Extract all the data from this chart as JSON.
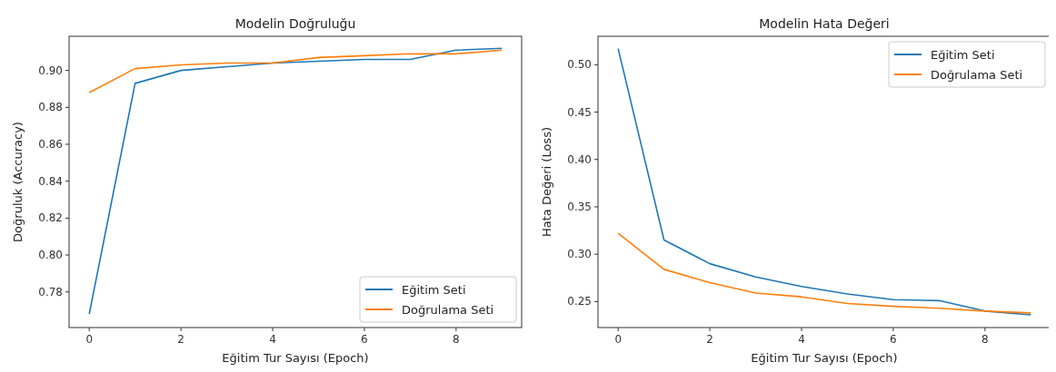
{
  "chart_data": [
    {
      "type": "line",
      "title": "Modelin Doğruluğu",
      "xlabel": "Eğitim Tur Sayısı (Epoch)",
      "ylabel": "Doğruluk (Accuracy)",
      "x": [
        0,
        1,
        2,
        3,
        4,
        5,
        6,
        7,
        8,
        9
      ],
      "xlim": [
        -0.44,
        9.43
      ],
      "xticks": [
        0,
        2,
        4,
        6,
        8
      ],
      "ylim": [
        0.7607,
        0.9185
      ],
      "yticks": [
        0.78,
        {
          "value": 0.8,
          "label": "0.80"
        },
        0.82,
        0.84,
        0.86,
        0.88,
        {
          "value": 0.9,
          "label": "0.90"
        }
      ],
      "legend": "bottom right",
      "grid": false,
      "series": [
        {
          "name": "Eğitim Seti",
          "color": "#1f77b4",
          "values": [
            0.768,
            0.893,
            0.9,
            0.902,
            0.904,
            0.905,
            0.906,
            0.906,
            0.911,
            0.912
          ]
        },
        {
          "name": "Doğrulama Seti",
          "color": "#ff7f0e",
          "values": [
            0.888,
            0.901,
            0.903,
            0.904,
            0.904,
            0.907,
            0.908,
            0.909,
            0.909,
            0.911
          ]
        }
      ]
    },
    {
      "type": "line",
      "title": "Modelin Hata Değeri",
      "xlabel": "Eğitim Tur Sayısı (Epoch)",
      "ylabel": "Hata Değeri (Loss)",
      "x": [
        0,
        1,
        2,
        3,
        4,
        5,
        6,
        7,
        8,
        9
      ],
      "xlim": [
        -0.44,
        9.43
      ],
      "xticks": [
        0,
        2,
        4,
        6,
        8
      ],
      "ylim": [
        0.2226,
        0.53
      ],
      "yticks": [
        0.25,
        {
          "value": 0.3,
          "label": "0.30"
        },
        0.35,
        {
          "value": 0.4,
          "label": "0.40"
        },
        0.45,
        {
          "value": 0.5,
          "label": "0.50"
        }
      ],
      "legend": "top right",
      "grid": false,
      "series": [
        {
          "name": "Eğitim Seti",
          "color": "#1f77b4",
          "values": [
            0.517,
            0.315,
            0.29,
            0.276,
            0.266,
            0.258,
            0.252,
            0.251,
            0.24,
            0.236
          ]
        },
        {
          "name": "Doğrulama Seti",
          "color": "#ff7f0e",
          "values": [
            0.322,
            0.284,
            0.27,
            0.259,
            0.255,
            0.248,
            0.245,
            0.243,
            0.24,
            0.238
          ]
        }
      ]
    }
  ]
}
